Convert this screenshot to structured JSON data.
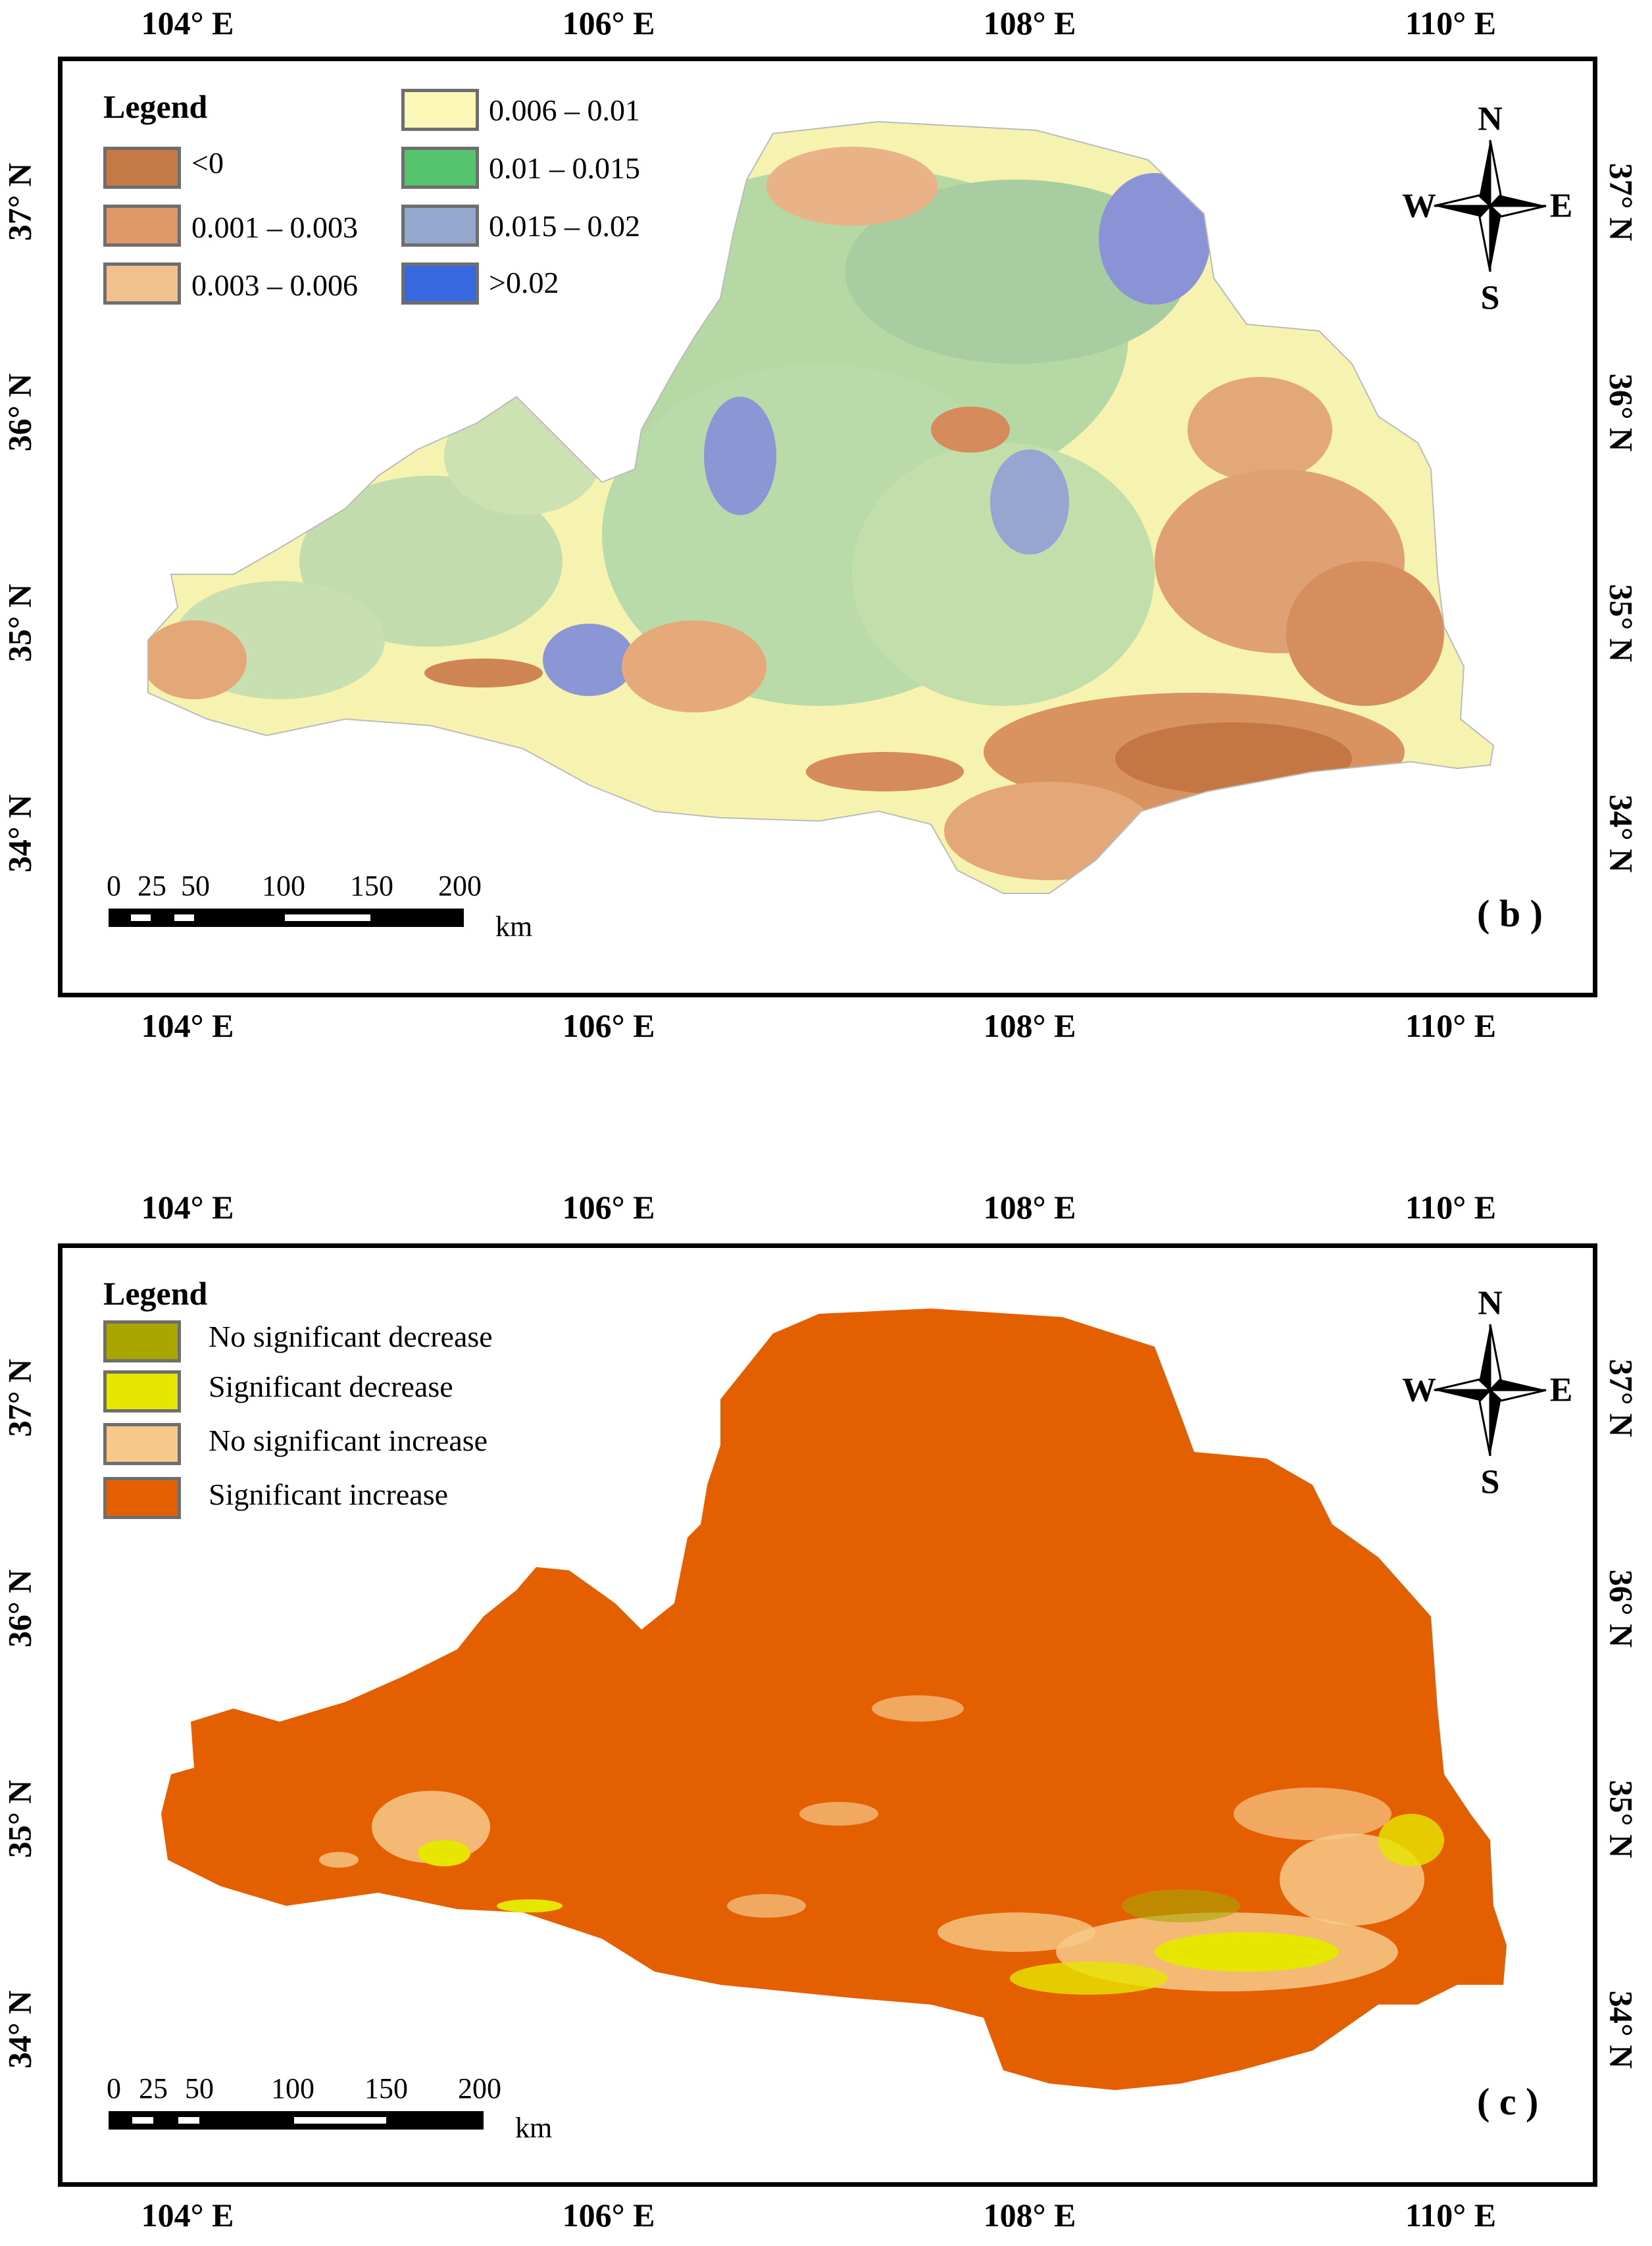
{
  "lon_labels": [
    "104° E",
    "106° E",
    "108° E",
    "110° E"
  ],
  "lat_labels": [
    "37° N",
    "36° N",
    "35° N",
    "34° N"
  ],
  "compass": {
    "n": "N",
    "s": "S",
    "e": "E",
    "w": "W"
  },
  "scale": {
    "ticks": [
      "0",
      "25",
      "50",
      "100",
      "150",
      "200"
    ],
    "unit": "km"
  },
  "panel_b": {
    "label": "( b )",
    "legend_title": "Legend",
    "legend_items": [
      {
        "label": "<0",
        "color": "#c57a45"
      },
      {
        "label": "0.001 – 0.003",
        "color": "#e0976a"
      },
      {
        "label": "0.003 – 0.006",
        "color": "#f0c08f"
      },
      {
        "label": "0.006 – 0.01",
        "color": "#fbf7b7"
      },
      {
        "label": "0.01 – 0.015",
        "color": "#55c46c"
      },
      {
        "label": "0.015 – 0.02",
        "color": "#93a8cc"
      },
      {
        "label": ">0.02",
        "color": "#3768e0"
      }
    ]
  },
  "panel_c": {
    "label": "( c )",
    "legend_title": "Legend",
    "legend_items": [
      {
        "label": "No significant decrease",
        "color": "#a9a600"
      },
      {
        "label": "Significant decrease",
        "color": "#e6e600"
      },
      {
        "label": "No significant increase",
        "color": "#f6c98a"
      },
      {
        "label": "Significant increase",
        "color": "#e35f00"
      }
    ]
  }
}
